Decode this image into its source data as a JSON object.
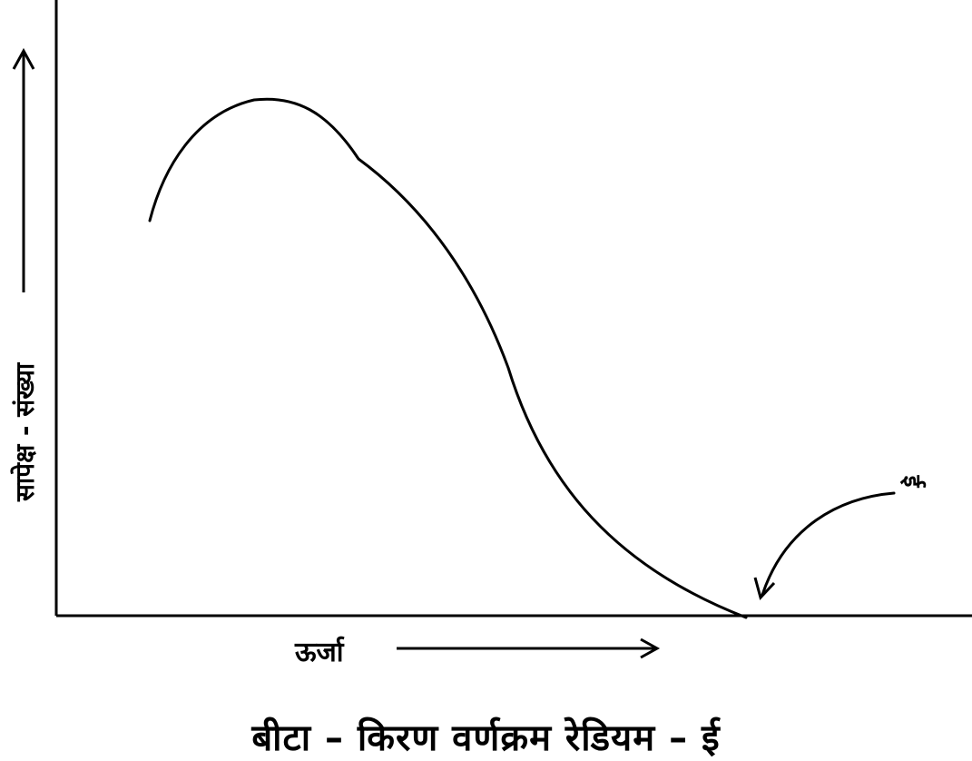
{
  "diagram": {
    "y_axis_label": "सापेक्ष - संख्या",
    "x_axis_label": "ऊर्जा",
    "endpoint_label": "ई",
    "caption": "बीटा – किरण वर्णक्रम रेडियम – ई"
  },
  "colors": {
    "stroke": "#000000",
    "background": "#ffffff"
  }
}
